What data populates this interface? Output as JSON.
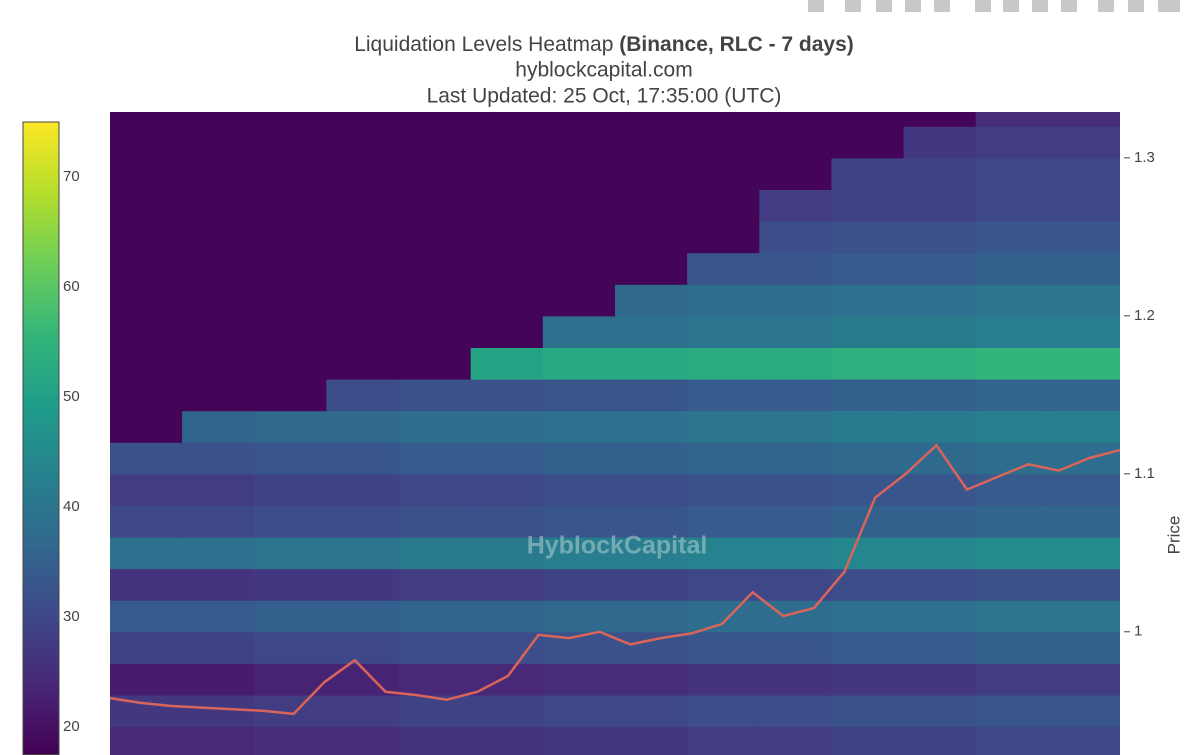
{
  "chart_data": {
    "type": "heatmap",
    "title": "Liquidation Levels Heatmap ",
    "title_bold": "(Binance, RLC - 7 days)",
    "subtitle": "hyblockcapital.com",
    "updated": "Last Updated: 25 Oct, 17:35:00 (UTC)",
    "watermark": "HyblockCapital",
    "y_label": "Price",
    "ylim": [
      0.922,
      1.329
    ],
    "yticks": [
      1,
      1.1,
      1.2,
      1.3
    ],
    "y_edges": [
      0.92,
      0.94,
      0.96,
      0.98,
      1.0,
      1.02,
      1.04,
      1.06,
      1.08,
      1.1,
      1.12,
      1.14,
      1.16,
      1.18,
      1.2,
      1.22,
      1.24,
      1.26,
      1.28,
      1.3,
      1.32,
      1.34
    ],
    "z": [
      [
        24,
        24,
        25,
        25,
        26,
        26,
        27,
        27,
        28,
        28,
        29,
        29,
        30,
        30
      ],
      [
        27,
        27,
        28,
        28,
        29,
        29,
        30,
        30,
        31,
        31,
        32,
        32,
        33,
        33
      ],
      [
        22,
        22,
        23,
        23,
        24,
        24,
        25,
        25,
        26,
        26,
        27,
        27,
        28,
        28
      ],
      [
        29,
        29,
        30,
        30,
        31,
        31,
        32,
        32,
        33,
        33,
        34,
        34,
        35,
        35
      ],
      [
        34,
        34,
        35,
        35,
        36,
        36,
        37,
        37,
        38,
        38,
        39,
        39,
        40,
        40
      ],
      [
        26,
        26,
        27,
        27,
        28,
        28,
        29,
        29,
        30,
        30,
        31,
        31,
        32,
        32
      ],
      [
        39,
        39,
        40,
        40,
        41,
        41,
        42,
        42,
        43,
        43,
        44,
        44,
        45,
        45
      ],
      [
        30,
        30,
        31,
        31,
        32,
        32,
        33,
        33,
        34,
        34,
        35,
        35,
        36,
        36
      ],
      [
        28,
        28,
        29,
        29,
        30,
        30,
        31,
        31,
        32,
        32,
        33,
        33,
        34,
        34
      ],
      [
        32,
        32,
        33,
        33,
        34,
        34,
        35,
        35,
        36,
        36,
        37,
        37,
        38,
        38
      ],
      [
        18,
        36,
        37,
        37,
        38,
        38,
        39,
        39,
        40,
        40,
        41,
        41,
        42,
        42
      ],
      [
        18,
        18,
        18,
        31,
        32,
        32,
        33,
        33,
        34,
        34,
        35,
        35,
        36,
        36
      ],
      [
        18,
        18,
        18,
        18,
        18,
        51,
        52,
        52,
        53,
        53,
        54,
        54,
        55,
        55
      ],
      [
        18,
        18,
        18,
        18,
        18,
        18,
        39,
        39,
        40,
        40,
        41,
        41,
        42,
        42
      ],
      [
        18,
        18,
        18,
        18,
        18,
        18,
        18,
        37,
        38,
        38,
        39,
        39,
        40,
        40
      ],
      [
        18,
        18,
        18,
        18,
        18,
        18,
        18,
        18,
        33,
        33,
        34,
        34,
        35,
        35
      ],
      [
        18,
        18,
        18,
        18,
        18,
        18,
        18,
        18,
        18,
        31,
        32,
        32,
        33,
        33
      ],
      [
        18,
        18,
        18,
        18,
        18,
        18,
        18,
        18,
        18,
        28,
        29,
        29,
        30,
        30
      ],
      [
        18,
        18,
        18,
        18,
        18,
        18,
        18,
        18,
        18,
        18,
        29,
        29,
        30,
        30
      ],
      [
        18,
        18,
        18,
        18,
        18,
        18,
        18,
        18,
        18,
        18,
        18,
        27,
        28,
        28
      ],
      [
        18,
        18,
        18,
        18,
        18,
        18,
        18,
        18,
        18,
        18,
        18,
        18,
        25,
        25
      ]
    ],
    "colorscale": [
      "#440154",
      "#482878",
      "#3e4989",
      "#31688e",
      "#26828e",
      "#1f9e89",
      "#35b779",
      "#6ece58",
      "#b5de2b",
      "#fde725"
    ],
    "zlim": [
      17.5,
      75
    ],
    "colorbar_ticks": [
      20,
      30,
      40,
      50,
      60,
      70
    ],
    "price_line": {
      "color": "#d9645a",
      "values": [
        0.958,
        0.955,
        0.953,
        0.952,
        0.951,
        0.95,
        0.948,
        0.968,
        0.982,
        0.962,
        0.96,
        0.957,
        0.962,
        0.972,
        0.998,
        0.996,
        1.0,
        0.992,
        0.996,
        0.999,
        1.005,
        1.025,
        1.01,
        1.015,
        1.038,
        1.085,
        1.1,
        1.118,
        1.09,
        1.098,
        1.106,
        1.102,
        1.11,
        1.115
      ]
    }
  }
}
